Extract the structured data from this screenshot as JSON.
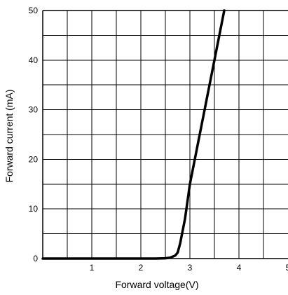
{
  "chart_data": {
    "type": "line",
    "title": "",
    "xlabel": "Forward voltage(V)",
    "ylabel": "Forward current (mA)",
    "xlim": [
      0,
      5
    ],
    "ylim": [
      0,
      50
    ],
    "x_ticks": [
      1,
      2,
      3,
      4,
      5
    ],
    "x_tick_labels": [
      "1",
      "2",
      "3",
      "4",
      "5"
    ],
    "y_ticks": [
      0,
      10,
      20,
      30,
      40,
      50
    ],
    "y_tick_labels": [
      "0",
      "10",
      "20",
      "30",
      "40",
      "50"
    ],
    "x_grid_step": 0.5,
    "y_grid_step": 5,
    "grid": true,
    "legend": "none",
    "series": [
      {
        "color": "#000000",
        "points": [
          [
            0.0,
            0.0
          ],
          [
            2.3,
            0.0
          ],
          [
            2.5,
            0.05
          ],
          [
            2.6,
            0.2
          ],
          [
            2.7,
            0.6
          ],
          [
            2.75,
            1.2
          ],
          [
            2.8,
            3.0
          ],
          [
            2.85,
            5.5
          ],
          [
            2.9,
            8.0
          ],
          [
            3.0,
            15.0
          ],
          [
            3.2,
            25.0
          ],
          [
            3.4,
            35.0
          ],
          [
            3.55,
            42.5
          ],
          [
            3.7,
            50.0
          ]
        ]
      }
    ]
  }
}
